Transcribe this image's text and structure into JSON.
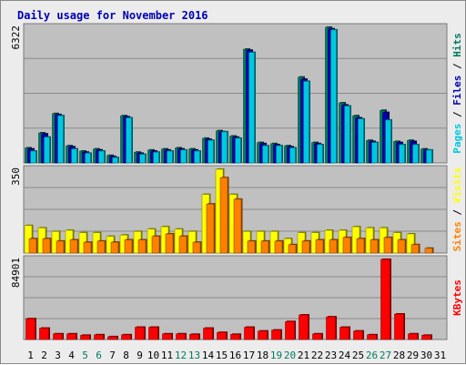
{
  "chart_data": {
    "type": "bar",
    "title": "Daily usage for November 2016",
    "categories": [
      "1",
      "2",
      "3",
      "4",
      "5",
      "6",
      "7",
      "8",
      "9",
      "10",
      "11",
      "12",
      "13",
      "14",
      "15",
      "16",
      "17",
      "18",
      "19",
      "20",
      "21",
      "22",
      "23",
      "24",
      "25",
      "26",
      "27",
      "28",
      "29",
      "30",
      "31"
    ],
    "weekend_days": [
      "5",
      "6",
      "12",
      "13",
      "19",
      "20",
      "26",
      "27"
    ],
    "panels": [
      {
        "name": "hits-files-pages",
        "ymax_label": "6322",
        "ylim": [
          0,
          6322
        ],
        "side_label": [
          {
            "text": "Pages",
            "color": "#00c8e0"
          },
          {
            "text": " / ",
            "color": "#000000"
          },
          {
            "text": "Files",
            "color": "#0000b0"
          },
          {
            "text": " / ",
            "color": "#000000"
          },
          {
            "text": "Hits",
            "color": "#007a5e"
          }
        ],
        "series": [
          {
            "name": "Hits",
            "color": "#007a5e",
            "values": [
              700,
              1400,
              2300,
              800,
              550,
              650,
              350,
              2200,
              500,
              600,
              650,
              700,
              650,
              1150,
              1500,
              1250,
              5300,
              950,
              900,
              800,
              4000,
              950,
              6322,
              2800,
              2200,
              1050,
              2450,
              1000,
              1050,
              650,
              0
            ]
          },
          {
            "name": "Files",
            "color": "#0000b0",
            "values": [
              650,
              1350,
              2250,
              750,
              500,
              600,
              300,
              2150,
              450,
              550,
              600,
              650,
              600,
              1100,
              1450,
              1200,
              5250,
              900,
              850,
              750,
              3900,
              900,
              6250,
              2700,
              2100,
              1000,
              2350,
              950,
              1000,
              600,
              0
            ]
          },
          {
            "name": "Pages",
            "color": "#00c8e0",
            "values": [
              550,
              1200,
              2200,
              650,
              450,
              550,
              250,
              2100,
              400,
              500,
              550,
              600,
              550,
              1050,
              1450,
              1150,
              5150,
              800,
              800,
              700,
              3800,
              850,
              6200,
              2650,
              2050,
              950,
              2000,
              850,
              850,
              600,
              0
            ]
          }
        ]
      },
      {
        "name": "visits-sites",
        "ymax_label": "350",
        "ylim": [
          0,
          350
        ],
        "side_label": [
          {
            "text": "Sites",
            "color": "#ff8000"
          },
          {
            "text": " / ",
            "color": "#000000"
          },
          {
            "text": "Visits",
            "color": "#ffff00"
          }
        ],
        "series": [
          {
            "name": "Visits",
            "color": "#ffff00",
            "values": [
              115,
              105,
              90,
              95,
              85,
              85,
              70,
              75,
              90,
              100,
              110,
              100,
              90,
              245,
              350,
              245,
              90,
              90,
              90,
              60,
              85,
              85,
              95,
              95,
              110,
              105,
              105,
              85,
              80,
              0,
              0
            ]
          },
          {
            "name": "Sites",
            "color": "#ff8000",
            "values": [
              60,
              60,
              50,
              55,
              45,
              50,
              45,
              55,
              55,
              70,
              80,
              70,
              45,
              205,
              315,
              225,
              50,
              50,
              50,
              35,
              50,
              55,
              55,
              65,
              60,
              55,
              65,
              55,
              35,
              20,
              0
            ]
          }
        ]
      },
      {
        "name": "kbytes",
        "ymax_label": "84901",
        "ylim": [
          0,
          84901
        ],
        "side_label": [
          {
            "text": "KBytes",
            "color": "#ff0000"
          }
        ],
        "series": [
          {
            "name": "KBytes",
            "color": "#ff0000",
            "values": [
              22000,
              12000,
              6000,
              6000,
              4500,
              5000,
              3000,
              5000,
              13000,
              13000,
              6000,
              6000,
              5500,
              12000,
              7500,
              5500,
              13000,
              9000,
              10000,
              19000,
              26000,
              6000,
              24000,
              13000,
              9000,
              5000,
              84901,
              27000,
              6000,
              4500,
              0
            ]
          }
        ]
      }
    ]
  }
}
